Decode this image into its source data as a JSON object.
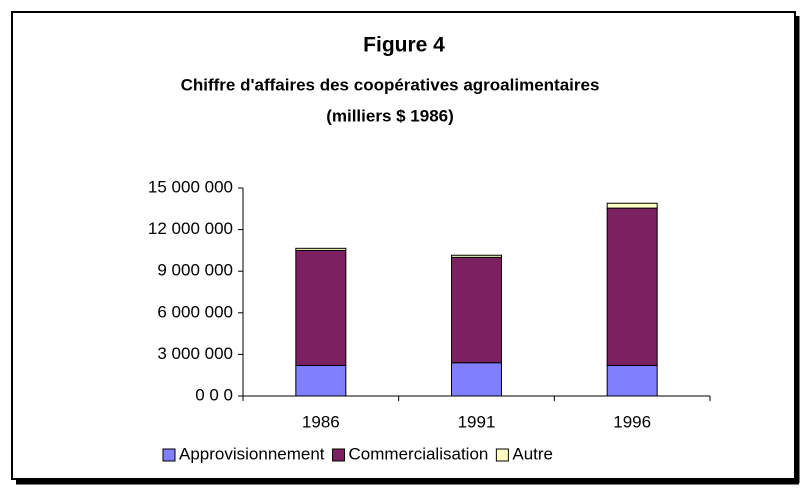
{
  "chart_data": {
    "type": "stacked_bar",
    "title": "Figure 4",
    "subtitle": [
      "Chiffre d'affaires des coopératives agroalimentaires",
      "(milliers $ 1986)"
    ],
    "categories": [
      "1986",
      "1991",
      "1996"
    ],
    "series": [
      {
        "name": "Approvisionnement",
        "color": "#8080ff",
        "values": [
          2200000,
          2400000,
          2200000
        ]
      },
      {
        "name": "Commercialisation",
        "color": "#7b2060",
        "values": [
          8300000,
          7600000,
          11350000
        ]
      },
      {
        "name": "Autre",
        "color": "#ffffc0",
        "values": [
          150000,
          150000,
          350000
        ]
      }
    ],
    "ylim": [
      0,
      15000000
    ],
    "yticks": [
      {
        "value": 0,
        "label": "0 0 0"
      },
      {
        "value": 3000000,
        "label": "3 000 000"
      },
      {
        "value": 6000000,
        "label": "6 000 000"
      },
      {
        "value": 9000000,
        "label": "9 000 000"
      },
      {
        "value": 12000000,
        "label": "12 000 000"
      },
      {
        "value": 15000000,
        "label": "15 000 000"
      }
    ],
    "grid": false,
    "legend": "bottom"
  }
}
